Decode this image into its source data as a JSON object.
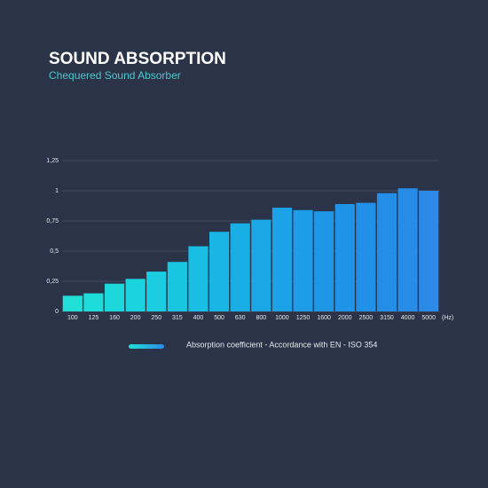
{
  "chart_data": {
    "type": "bar",
    "title": "SOUND ABSORPTION",
    "subtitle": "Chequered Sound Absorber",
    "x_label": "(Hz)",
    "categories": [
      "100",
      "125",
      "160",
      "200",
      "250",
      "315",
      "400",
      "500",
      "630",
      "800",
      "1000",
      "1250",
      "1600",
      "2000",
      "2500",
      "3150",
      "4000",
      "5000"
    ],
    "series": [
      {
        "name": "Absorption coefficient - Accordance with EN - ISO 354",
        "values": [
          0.13,
          0.15,
          0.23,
          0.27,
          0.33,
          0.41,
          0.54,
          0.66,
          0.73,
          0.76,
          0.86,
          0.84,
          0.83,
          0.89,
          0.9,
          0.98,
          1.02,
          1.0
        ],
        "colors": [
          "#20dfd6",
          "#1edcda",
          "#1cd8dc",
          "#1bd3de",
          "#1acde0",
          "#19c6e2",
          "#19bee4",
          "#19b6e5",
          "#1aaee6",
          "#1ba7e6",
          "#1ca2e7",
          "#1d9ce7",
          "#1e97e7",
          "#1f93e8",
          "#2190e8",
          "#238de8",
          "#278be8",
          "#2c89e8"
        ]
      }
    ],
    "ylim": [
      0,
      1.25
    ],
    "yticks": [
      0,
      {
        "value": 0.25,
        "label": "0,25"
      },
      {
        "value": 0.5,
        "label": "0,5"
      },
      {
        "value": 0.75,
        "label": "0,75"
      },
      1,
      {
        "value": 1.25,
        "label": "1,25"
      }
    ],
    "grid": true
  }
}
